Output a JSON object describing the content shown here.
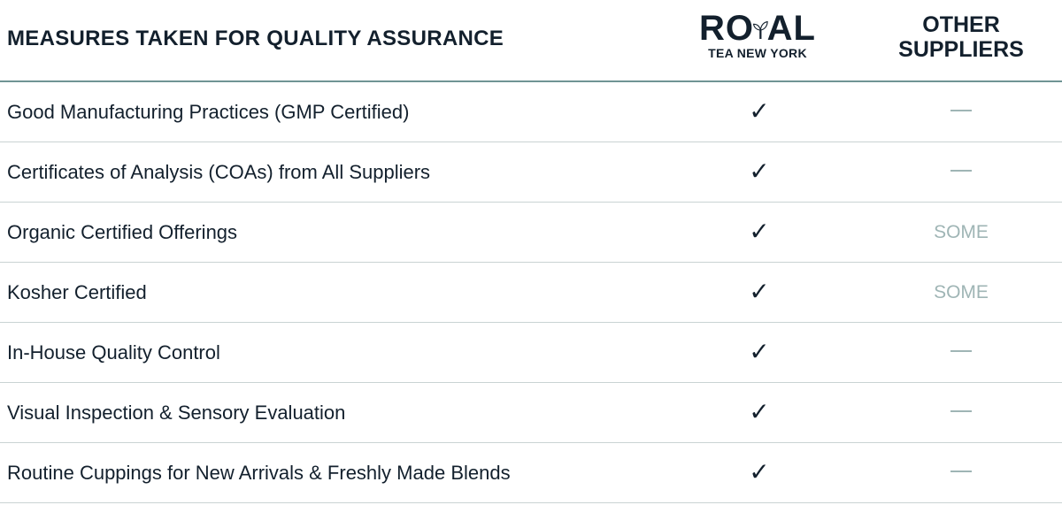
{
  "header": {
    "title": "MEASURES TAKEN FOR QUALITY ASSURANCE",
    "brand": {
      "logo_main": "ROYAL",
      "logo_sub": "TEA NEW YORK"
    },
    "other_column": "OTHER SUPPLIERS"
  },
  "colors": {
    "text": "#13202d",
    "accent_line": "#6f9494",
    "muted": "#9fb5b5",
    "divider": "#c9d3d3"
  },
  "rows": [
    {
      "label": "Good Manufacturing Practices (GMP Certified)",
      "royal": "✓",
      "other": ""
    },
    {
      "label": "Certificates of Analysis (COAs) from All Suppliers",
      "royal": "✓",
      "other": ""
    },
    {
      "label": "Organic Certified Offerings",
      "royal": "✓",
      "other": "SOME"
    },
    {
      "label": "Kosher Certified",
      "royal": "✓",
      "other": "SOME"
    },
    {
      "label": "In-House Quality Control",
      "royal": "✓",
      "other": ""
    },
    {
      "label": "Visual Inspection & Sensory Evaluation",
      "royal": "✓",
      "other": ""
    },
    {
      "label": "Routine Cuppings for New Arrivals & Freshly Made Blends",
      "royal": "✓",
      "other": ""
    }
  ]
}
